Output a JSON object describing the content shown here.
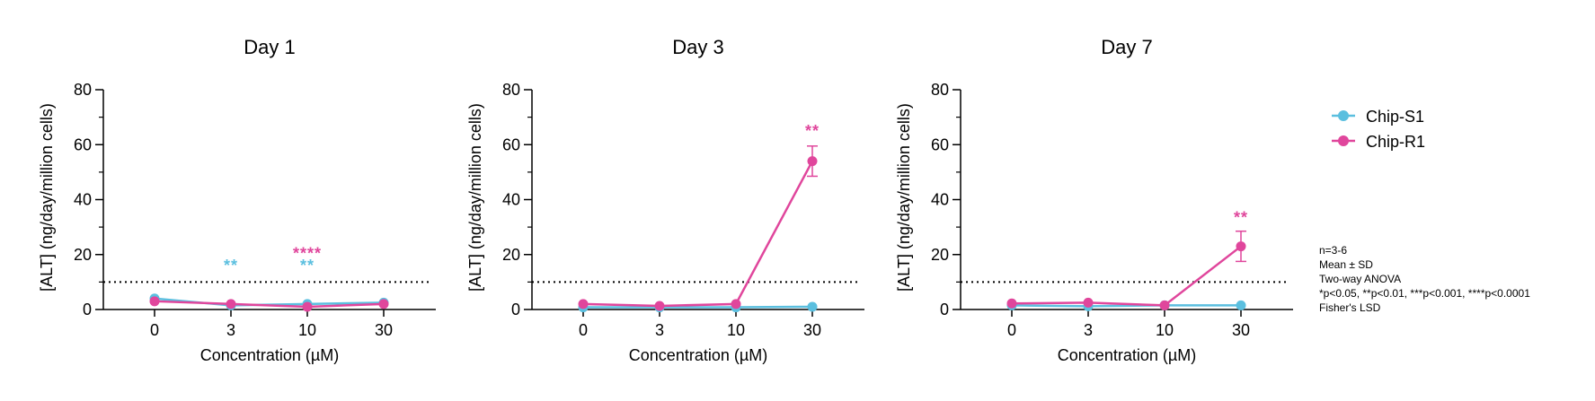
{
  "colors": {
    "chip_s1": "#5bbfdf",
    "chip_r1": "#e0469c",
    "axis": "#000000"
  },
  "legend": {
    "items": [
      {
        "label": "Chip-S1",
        "series": "chip_s1"
      },
      {
        "label": "Chip-R1",
        "series": "chip_r1"
      }
    ]
  },
  "notes": [
    "n=3-6",
    "Mean ± SD",
    "Two-way ANOVA",
    "*p<0.05, **p<0.01, ***p<0.001, ****p<0.0001",
    "Fisher's LSD"
  ],
  "chart_data": [
    {
      "type": "line",
      "title": "Day 1",
      "xlabel": "Concentration (µM)",
      "ylabel": "[ALT] (ng/day/million cells)",
      "categories": [
        "0",
        "3",
        "10",
        "30"
      ],
      "ylim": [
        0,
        80
      ],
      "yticks": [
        0,
        20,
        40,
        60,
        80
      ],
      "reference_line": 10,
      "series": [
        {
          "name": "Chip-S1",
          "color_key": "chip_s1",
          "values": [
            4,
            1.5,
            2,
            2.5
          ],
          "sd": [
            0,
            0,
            0,
            0
          ]
        },
        {
          "name": "Chip-R1",
          "color_key": "chip_r1",
          "values": [
            3,
            2,
            1,
            2
          ],
          "sd": [
            0,
            0,
            0,
            0
          ]
        }
      ],
      "annotations": [
        {
          "category_index": 1,
          "value": 14,
          "text": "**",
          "series": "chip_s1"
        },
        {
          "category_index": 2,
          "value": 14,
          "text": "**",
          "series": "chip_s1"
        },
        {
          "category_index": 2,
          "value": 18.5,
          "text": "****",
          "series": "chip_r1"
        }
      ]
    },
    {
      "type": "line",
      "title": "Day 3",
      "xlabel": "Concentration (µM)",
      "ylabel": "[ALT] (ng/day/million cells)",
      "categories": [
        "0",
        "3",
        "10",
        "30"
      ],
      "ylim": [
        0,
        80
      ],
      "yticks": [
        0,
        20,
        40,
        60,
        80
      ],
      "reference_line": 10,
      "series": [
        {
          "name": "Chip-S1",
          "color_key": "chip_s1",
          "values": [
            0.8,
            0.8,
            0.8,
            1
          ],
          "sd": [
            0,
            0,
            0,
            0
          ]
        },
        {
          "name": "Chip-R1",
          "color_key": "chip_r1",
          "values": [
            2,
            1.3,
            2,
            54
          ],
          "sd": [
            0,
            0,
            0,
            5.5
          ]
        }
      ],
      "annotations": [
        {
          "category_index": 3,
          "value": 63,
          "text": "**",
          "series": "chip_r1"
        }
      ]
    },
    {
      "type": "line",
      "title": "Day 7",
      "xlabel": "Concentration (µM)",
      "ylabel": "[ALT] (ng/day/million cells)",
      "categories": [
        "0",
        "3",
        "10",
        "30"
      ],
      "ylim": [
        0,
        80
      ],
      "yticks": [
        0,
        20,
        40,
        60,
        80
      ],
      "reference_line": 10,
      "series": [
        {
          "name": "Chip-S1",
          "color_key": "chip_s1",
          "values": [
            1.5,
            1.2,
            1.5,
            1.5
          ],
          "sd": [
            0,
            0,
            0,
            0
          ]
        },
        {
          "name": "Chip-R1",
          "color_key": "chip_r1",
          "values": [
            2.2,
            2.5,
            1.5,
            23
          ],
          "sd": [
            0,
            0,
            0,
            5.5
          ]
        }
      ],
      "annotations": [
        {
          "category_index": 3,
          "value": 31.5,
          "text": "**",
          "series": "chip_r1"
        }
      ]
    }
  ]
}
